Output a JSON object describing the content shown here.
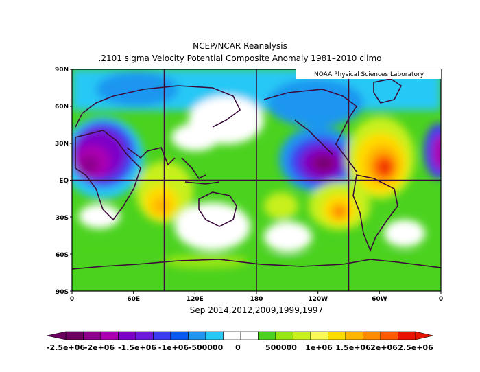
{
  "title_line1": "NCEP/NCAR Reanalysis",
  "title_line2": ".2101 sigma Velocity Potential  Composite Anomaly 1981–2010 climo",
  "credit": "NOAA Physical Sciences Laboratory",
  "subtitle": "Sep 2014,2012,2009,1999,1997",
  "lat_labels": [
    "90N",
    "60N",
    "30N",
    "EQ",
    "30S",
    "60S",
    "90S"
  ],
  "lon_labels": [
    "0",
    "60E",
    "120E",
    "180",
    "120W",
    "60W",
    "0"
  ],
  "colorbar": {
    "labels": [
      "-2.5e+06",
      "-2e+06",
      "-1.5e+06",
      "-1e+06",
      "-500000",
      "0",
      "500000",
      "1e+06",
      "1.5e+06",
      "2e+06",
      "2.5e+06"
    ],
    "colors": [
      "#6b0061",
      "#8d008d",
      "#aa00b2",
      "#7d00c8",
      "#6e19dc",
      "#3c3cf0",
      "#0a5af0",
      "#1e96f0",
      "#27c8f5",
      "#ffffff",
      "#ffffff",
      "#4bd21e",
      "#96e614",
      "#c8f01e",
      "#fafa5a",
      "#ffdc00",
      "#ffb400",
      "#ff8c00",
      "#ff5a00",
      "#e61400"
    ]
  }
}
